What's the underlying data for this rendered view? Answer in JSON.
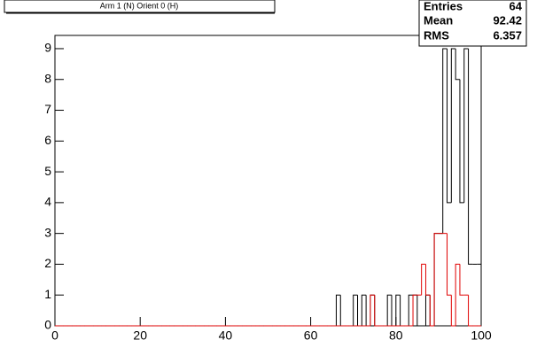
{
  "chart_data": {
    "type": "histogram",
    "title": "Arm 1 (N) Orient 0 (H)",
    "bins": [
      0,
      1,
      2,
      3,
      4,
      5,
      6,
      7,
      8,
      9,
      10,
      11,
      12,
      13,
      14,
      15,
      16,
      17,
      18,
      19,
      20,
      21,
      22,
      23,
      24,
      25,
      26,
      27,
      28,
      29,
      30,
      31,
      32,
      33,
      34,
      35,
      36,
      37,
      38,
      39,
      40,
      41,
      42,
      43,
      44,
      45,
      46,
      47,
      48,
      49,
      50,
      51,
      52,
      53,
      54,
      55,
      56,
      57,
      58,
      59,
      60,
      61,
      62,
      63,
      64,
      65,
      66,
      67,
      68,
      69,
      70,
      71,
      72,
      73,
      74,
      75,
      76,
      77,
      78,
      79,
      80,
      81,
      82,
      83,
      84,
      85,
      86,
      87,
      88,
      89,
      90,
      91,
      92,
      93,
      94,
      95,
      96,
      97,
      98,
      99,
      100
    ],
    "series": [
      {
        "color": "#000000",
        "values": [
          0,
          0,
          0,
          0,
          0,
          0,
          0,
          0,
          0,
          0,
          0,
          0,
          0,
          0,
          0,
          0,
          0,
          0,
          0,
          0,
          0,
          0,
          0,
          0,
          0,
          0,
          0,
          0,
          0,
          0,
          0,
          0,
          0,
          0,
          0,
          0,
          0,
          0,
          0,
          0,
          0,
          0,
          0,
          0,
          0,
          0,
          0,
          0,
          0,
          0,
          0,
          0,
          0,
          0,
          0,
          0,
          0,
          0,
          0,
          0,
          0,
          0,
          0,
          0,
          0,
          0,
          1,
          0,
          0,
          0,
          1,
          0,
          1,
          0,
          1,
          0,
          0,
          0,
          1,
          0,
          1,
          0,
          0,
          1,
          1,
          0,
          0,
          1,
          0,
          3,
          3,
          9,
          4,
          9,
          8,
          4,
          9,
          2,
          2,
          2
        ]
      },
      {
        "color": "#e00000",
        "values": [
          0,
          0,
          0,
          0,
          0,
          0,
          0,
          0,
          0,
          0,
          0,
          0,
          0,
          0,
          0,
          0,
          0,
          0,
          0,
          0,
          0,
          0,
          0,
          0,
          0,
          0,
          0,
          0,
          0,
          0,
          0,
          0,
          0,
          0,
          0,
          0,
          0,
          0,
          0,
          0,
          0,
          0,
          0,
          0,
          0,
          0,
          0,
          0,
          0,
          0,
          0,
          0,
          0,
          0,
          0,
          0,
          0,
          0,
          0,
          0,
          0,
          0,
          0,
          0,
          0,
          0,
          0,
          0,
          0,
          0,
          0,
          0,
          0,
          0,
          1,
          0,
          0,
          0,
          0,
          0,
          0,
          0,
          0,
          0,
          1,
          1,
          2,
          1,
          0,
          3,
          3,
          3,
          1,
          0,
          2,
          1,
          1,
          0,
          0,
          0
        ]
      }
    ],
    "xlim": [
      0,
      100
    ],
    "xticks": [
      0,
      20,
      40,
      60,
      80,
      100
    ],
    "ylim": [
      0,
      9.43
    ],
    "yticks": [
      0,
      1,
      2,
      3,
      4,
      5,
      6,
      7,
      8,
      9
    ],
    "stats": {
      "entries_label": "Entries",
      "entries": 64,
      "mean_label": "Mean",
      "mean": 92.42,
      "rms_label": "RMS",
      "rms": 6.357
    }
  }
}
